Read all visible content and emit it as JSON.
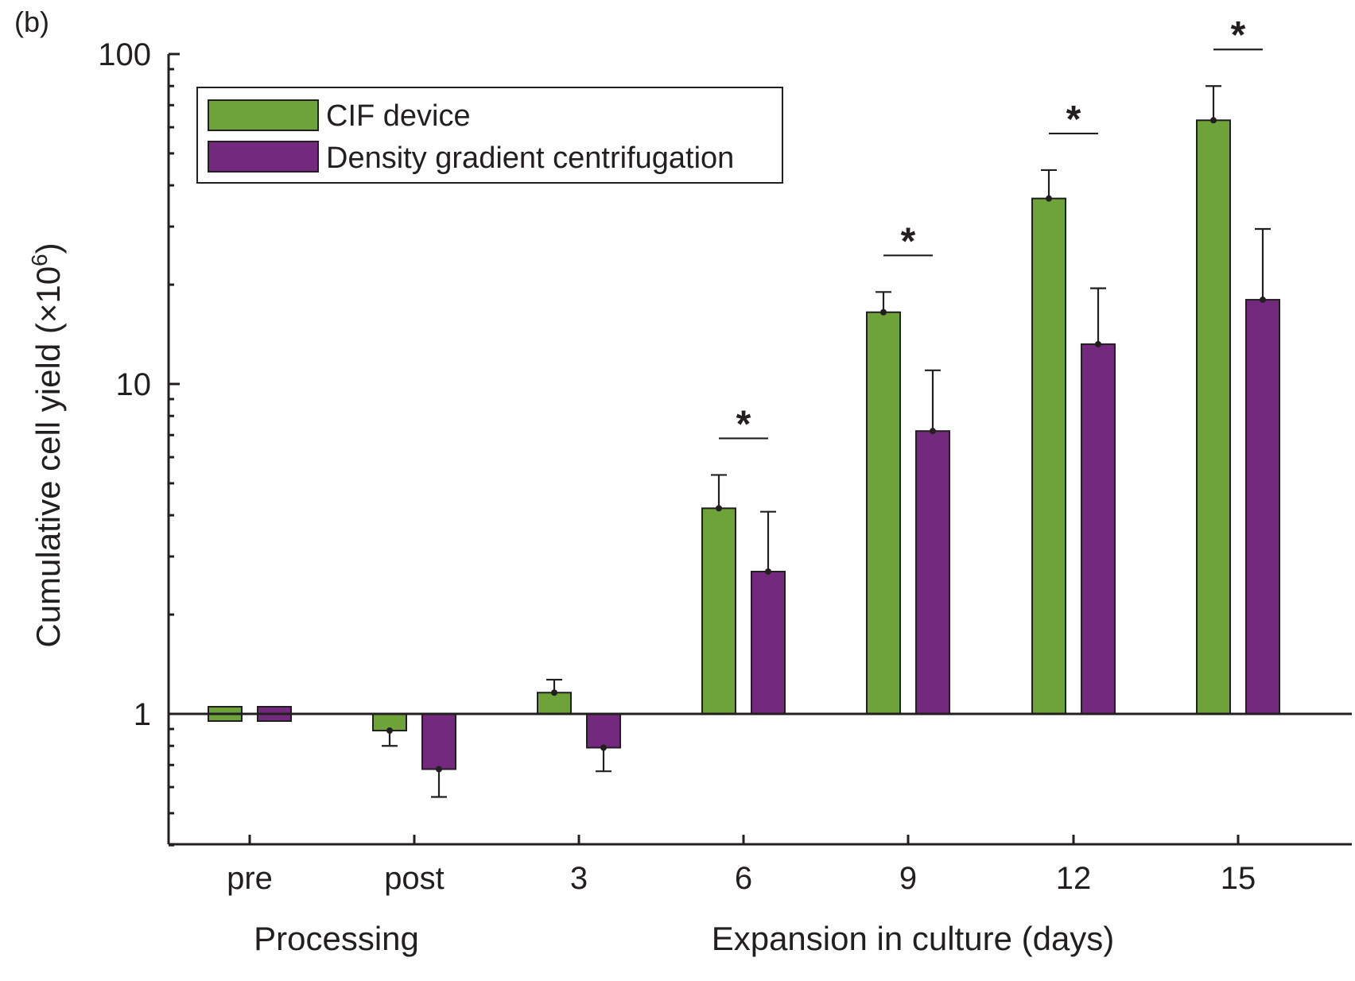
{
  "panel_label": "(b)",
  "chart_data": {
    "type": "bar",
    "scale": "log",
    "baseline": 1,
    "ylim": [
      0.4,
      100
    ],
    "yticks": [
      1,
      10,
      100
    ],
    "ytick_labels": [
      "1",
      "10",
      "100"
    ],
    "ylabel_main": "Cumulative cell yield (×10",
    "ylabel_exp": "6",
    "ylabel_close": ")",
    "categories": [
      "pre",
      "post",
      "3",
      "6",
      "9",
      "12",
      "15"
    ],
    "group_labels": [
      "Processing",
      "Expansion in culture (days)"
    ],
    "legend_position": "top-left",
    "series": [
      {
        "name": "CIF device",
        "color": "#6ea33a",
        "values": [
          1.0,
          0.89,
          1.16,
          4.2,
          16.5,
          36.5,
          63
        ],
        "err_upper": [
          1.0,
          0.8,
          1.27,
          5.3,
          19.0,
          44.5,
          80
        ],
        "err_dir": [
          "none",
          "down",
          "up",
          "up",
          "up",
          "up",
          "up"
        ]
      },
      {
        "name": "Density gradient centrifugation",
        "color": "#73297d",
        "values": [
          1.0,
          0.68,
          0.79,
          2.7,
          7.2,
          13.2,
          18.0
        ],
        "err_upper": [
          1.0,
          0.56,
          0.67,
          4.1,
          11.0,
          19.5,
          29.5
        ],
        "err_dir": [
          "none",
          "down",
          "down",
          "up",
          "up",
          "up",
          "up"
        ]
      }
    ],
    "significance": [
      {
        "category": "6",
        "label": "*"
      },
      {
        "category": "9",
        "label": "*"
      },
      {
        "category": "12",
        "label": "*"
      },
      {
        "category": "15",
        "label": "*"
      }
    ]
  }
}
